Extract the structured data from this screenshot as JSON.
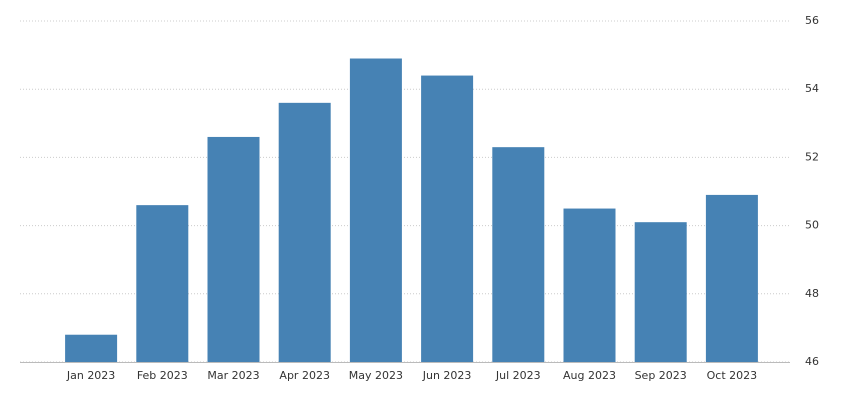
{
  "chart_data": {
    "type": "bar",
    "categories": [
      "Jan 2023",
      "Feb 2023",
      "Mar 2023",
      "Apr 2023",
      "May 2023",
      "Jun 2023",
      "Jul 2023",
      "Aug 2023",
      "Sep 2023",
      "Oct 2023"
    ],
    "values": [
      46.8,
      50.6,
      52.6,
      53.6,
      54.9,
      54.4,
      52.3,
      50.5,
      50.1,
      50.9
    ],
    "color": "#4682b4",
    "ylim": [
      46,
      56
    ],
    "yticks": [
      46,
      48,
      50,
      52,
      54,
      56
    ],
    "grid": true,
    "y_axis_side": "right"
  }
}
